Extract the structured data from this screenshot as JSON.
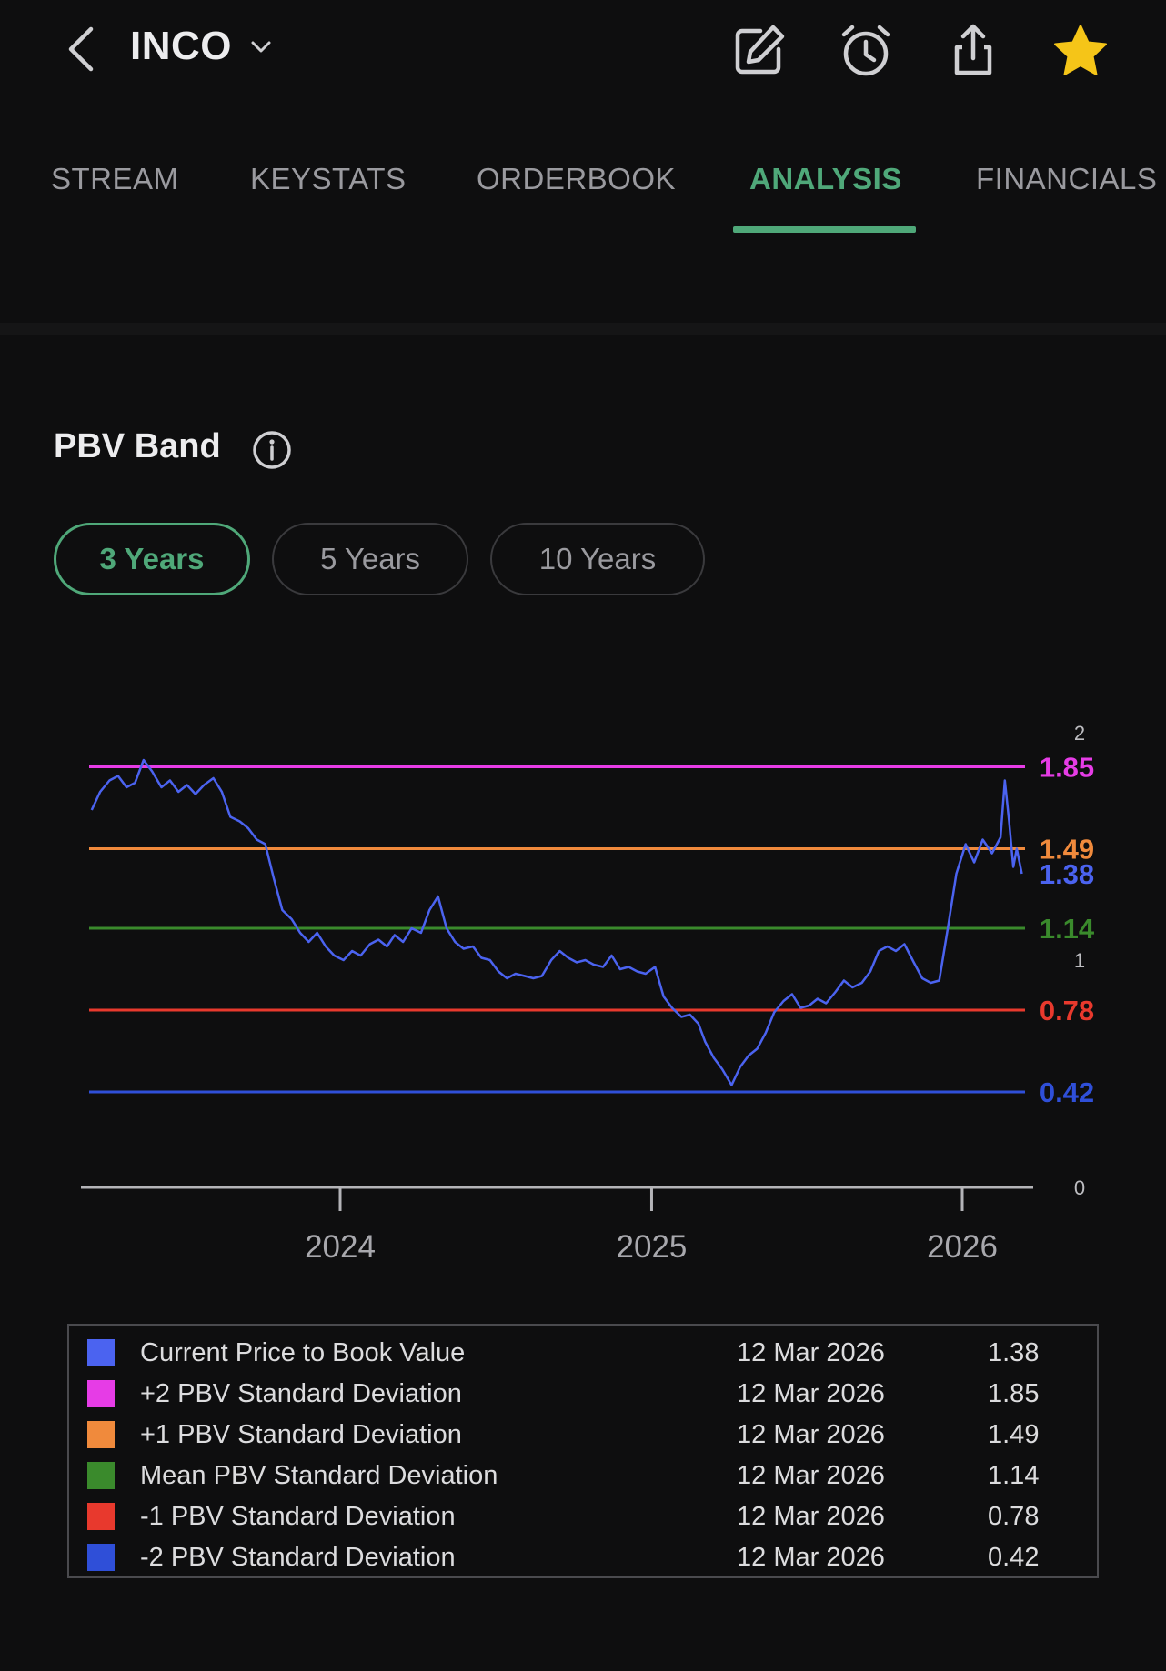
{
  "header": {
    "ticker": "INCO",
    "icons": [
      "back-arrow-icon",
      "chevron-down-icon",
      "edit-icon",
      "alarm-clock-icon",
      "share-icon",
      "star-icon"
    ],
    "star_color": "#f5c518"
  },
  "tabs": [
    {
      "label": "STREAM"
    },
    {
      "label": "KEYSTATS"
    },
    {
      "label": "ORDERBOOK"
    },
    {
      "label": "ANALYSIS",
      "active": true
    },
    {
      "label": "FINANCIALS"
    }
  ],
  "section": {
    "title": "PBV Band",
    "ranges": [
      {
        "label": "3 Years",
        "active": true
      },
      {
        "label": "5 Years"
      },
      {
        "label": "10 Years"
      }
    ]
  },
  "colors": {
    "accent": "#4fa879",
    "price": "#4b63f0",
    "plus2": "#e63ce6",
    "plus1": "#f08a3c",
    "mean": "#3a8a2c",
    "minus1": "#e8392d",
    "minus2": "#2f4fd8"
  },
  "chart_data": {
    "type": "line",
    "ylim": [
      0,
      2
    ],
    "y_ticks": [
      "0",
      "1",
      "2"
    ],
    "x_ticks": [
      "2024",
      "2025",
      "2026"
    ],
    "bands": [
      {
        "name": "+2 PBV Standard Deviation",
        "value": 1.85,
        "label": "1.85",
        "color": "#e63ce6"
      },
      {
        "name": "+1 PBV Standard Deviation",
        "value": 1.49,
        "label": "1.49",
        "color": "#f08a3c"
      },
      {
        "name": "Mean PBV Standard Deviation",
        "value": 1.14,
        "label": "1.14",
        "color": "#3a8a2c"
      },
      {
        "name": "-1 PBV Standard Deviation",
        "value": 0.78,
        "label": "0.78",
        "color": "#e8392d"
      },
      {
        "name": "-2 PBV Standard Deviation",
        "value": 0.42,
        "label": "0.42",
        "color": "#2f4fd8"
      }
    ],
    "current": {
      "value": 1.38,
      "label": "1.38",
      "color": "#4b63f0"
    },
    "series": [
      {
        "color": "#4b63f0",
        "points": [
          [
            "2023-03-15",
            1.66
          ],
          [
            "2023-03-25",
            1.74
          ],
          [
            "2023-04-05",
            1.79
          ],
          [
            "2023-04-15",
            1.81
          ],
          [
            "2023-04-25",
            1.76
          ],
          [
            "2023-05-05",
            1.78
          ],
          [
            "2023-05-15",
            1.88
          ],
          [
            "2023-05-25",
            1.83
          ],
          [
            "2023-06-05",
            1.76
          ],
          [
            "2023-06-15",
            1.79
          ],
          [
            "2023-06-25",
            1.74
          ],
          [
            "2023-07-05",
            1.77
          ],
          [
            "2023-07-15",
            1.73
          ],
          [
            "2023-07-25",
            1.77
          ],
          [
            "2023-08-05",
            1.8
          ],
          [
            "2023-08-15",
            1.74
          ],
          [
            "2023-08-25",
            1.63
          ],
          [
            "2023-09-05",
            1.61
          ],
          [
            "2023-09-15",
            1.58
          ],
          [
            "2023-09-25",
            1.53
          ],
          [
            "2023-10-05",
            1.51
          ],
          [
            "2023-10-15",
            1.36
          ],
          [
            "2023-10-25",
            1.22
          ],
          [
            "2023-11-05",
            1.18
          ],
          [
            "2023-11-15",
            1.12
          ],
          [
            "2023-11-25",
            1.08
          ],
          [
            "2023-12-05",
            1.12
          ],
          [
            "2023-12-15",
            1.06
          ],
          [
            "2023-12-25",
            1.02
          ],
          [
            "2024-01-05",
            1.0
          ],
          [
            "2024-01-15",
            1.04
          ],
          [
            "2024-01-25",
            1.02
          ],
          [
            "2024-02-05",
            1.07
          ],
          [
            "2024-02-15",
            1.09
          ],
          [
            "2024-02-25",
            1.06
          ],
          [
            "2024-03-05",
            1.11
          ],
          [
            "2024-03-15",
            1.08
          ],
          [
            "2024-03-25",
            1.14
          ],
          [
            "2024-04-05",
            1.12
          ],
          [
            "2024-04-15",
            1.22
          ],
          [
            "2024-04-25",
            1.28
          ],
          [
            "2024-05-05",
            1.14
          ],
          [
            "2024-05-15",
            1.08
          ],
          [
            "2024-05-25",
            1.05
          ],
          [
            "2024-06-05",
            1.06
          ],
          [
            "2024-06-15",
            1.01
          ],
          [
            "2024-06-25",
            1.0
          ],
          [
            "2024-07-05",
            0.95
          ],
          [
            "2024-07-15",
            0.92
          ],
          [
            "2024-07-25",
            0.94
          ],
          [
            "2024-08-05",
            0.93
          ],
          [
            "2024-08-15",
            0.92
          ],
          [
            "2024-08-25",
            0.93
          ],
          [
            "2024-09-05",
            1.0
          ],
          [
            "2024-09-15",
            1.04
          ],
          [
            "2024-09-25",
            1.01
          ],
          [
            "2024-10-05",
            0.99
          ],
          [
            "2024-10-15",
            1.0
          ],
          [
            "2024-10-25",
            0.98
          ],
          [
            "2024-11-05",
            0.97
          ],
          [
            "2024-11-15",
            1.02
          ],
          [
            "2024-11-25",
            0.96
          ],
          [
            "2024-12-05",
            0.97
          ],
          [
            "2024-12-15",
            0.95
          ],
          [
            "2024-12-25",
            0.94
          ],
          [
            "2025-01-05",
            0.97
          ],
          [
            "2025-01-15",
            0.84
          ],
          [
            "2025-01-25",
            0.79
          ],
          [
            "2025-02-05",
            0.75
          ],
          [
            "2025-02-15",
            0.76
          ],
          [
            "2025-02-25",
            0.72
          ],
          [
            "2025-03-05",
            0.64
          ],
          [
            "2025-03-15",
            0.57
          ],
          [
            "2025-03-25",
            0.52
          ],
          [
            "2025-04-05",
            0.45
          ],
          [
            "2025-04-15",
            0.53
          ],
          [
            "2025-04-25",
            0.58
          ],
          [
            "2025-05-05",
            0.61
          ],
          [
            "2025-05-15",
            0.68
          ],
          [
            "2025-05-25",
            0.77
          ],
          [
            "2025-06-05",
            0.82
          ],
          [
            "2025-06-15",
            0.85
          ],
          [
            "2025-06-25",
            0.79
          ],
          [
            "2025-07-05",
            0.8
          ],
          [
            "2025-07-15",
            0.83
          ],
          [
            "2025-07-25",
            0.81
          ],
          [
            "2025-08-05",
            0.86
          ],
          [
            "2025-08-15",
            0.91
          ],
          [
            "2025-08-25",
            0.88
          ],
          [
            "2025-09-05",
            0.9
          ],
          [
            "2025-09-15",
            0.95
          ],
          [
            "2025-09-25",
            1.04
          ],
          [
            "2025-10-05",
            1.06
          ],
          [
            "2025-10-15",
            1.04
          ],
          [
            "2025-10-25",
            1.07
          ],
          [
            "2025-11-05",
            0.99
          ],
          [
            "2025-11-15",
            0.92
          ],
          [
            "2025-11-25",
            0.9
          ],
          [
            "2025-12-05",
            0.91
          ],
          [
            "2025-12-15",
            1.14
          ],
          [
            "2025-12-25",
            1.38
          ],
          [
            "2026-01-05",
            1.51
          ],
          [
            "2026-01-15",
            1.43
          ],
          [
            "2026-01-25",
            1.53
          ],
          [
            "2026-02-05",
            1.47
          ],
          [
            "2026-02-15",
            1.54
          ],
          [
            "2026-02-20",
            1.79
          ],
          [
            "2026-02-25",
            1.61
          ],
          [
            "2026-03-02",
            1.41
          ],
          [
            "2026-03-06",
            1.49
          ],
          [
            "2026-03-12",
            1.38
          ]
        ]
      }
    ]
  },
  "legend": [
    {
      "name": "Current Price to Book Value",
      "date": "12 Mar 2026",
      "value": "1.38",
      "color": "#4b63f0"
    },
    {
      "name": "+2 PBV Standard Deviation",
      "date": "12 Mar 2026",
      "value": "1.85",
      "color": "#e63ce6"
    },
    {
      "name": "+1 PBV Standard Deviation",
      "date": "12 Mar 2026",
      "value": "1.49",
      "color": "#f08a3c"
    },
    {
      "name": "Mean PBV Standard Deviation",
      "date": "12 Mar 2026",
      "value": "1.14",
      "color": "#3a8a2c"
    },
    {
      "name": "-1 PBV Standard Deviation",
      "date": "12 Mar 2026",
      "value": "0.78",
      "color": "#e8392d"
    },
    {
      "name": "-2 PBV Standard Deviation",
      "date": "12 Mar 2026",
      "value": "0.42",
      "color": "#2f4fd8"
    }
  ]
}
